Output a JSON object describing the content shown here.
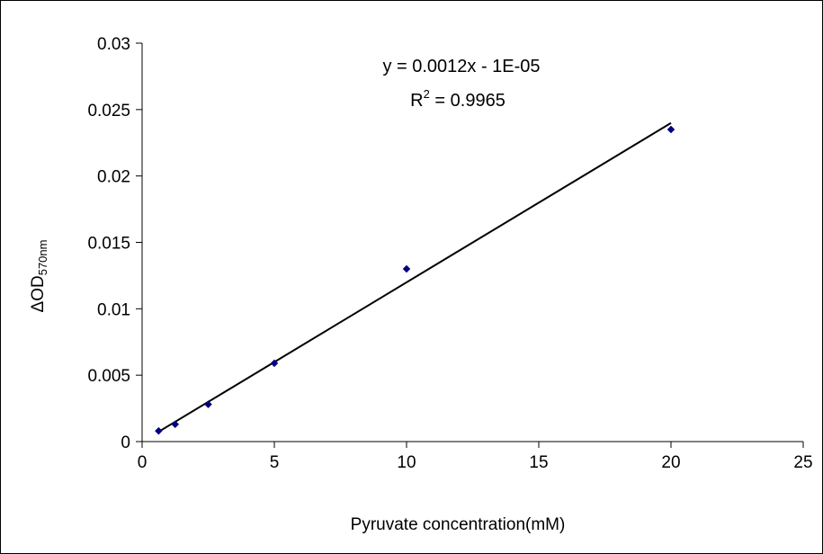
{
  "chart_data": {
    "type": "scatter",
    "xlabel": "Pyruvate concentration(mM)",
    "ylabel": {
      "main": "ΔOD",
      "sub": "570nm"
    },
    "xlim": [
      0,
      25
    ],
    "ylim": [
      0,
      0.03
    ],
    "xticks": [
      0,
      5,
      10,
      15,
      20,
      25
    ],
    "yticks": [
      0,
      0.005,
      0.01,
      0.015,
      0.02,
      0.025,
      0.03
    ],
    "xtick_labels": [
      "0",
      "5",
      "10",
      "15",
      "20",
      "25"
    ],
    "ytick_labels": [
      "0",
      "0.005",
      "0.01",
      "0.015",
      "0.02",
      "0.025",
      "0.03"
    ],
    "grid": false,
    "series": [
      {
        "x": [
          0.625,
          1.25,
          2.5,
          5,
          10,
          20
        ],
        "y": [
          0.0008,
          0.0013,
          0.0028,
          0.0059,
          0.013,
          0.0235
        ],
        "color": "#000080"
      }
    ],
    "trendline": {
      "slope": 0.0012,
      "intercept": -1e-05,
      "x_range": [
        0.625,
        20
      ],
      "color": "#000000",
      "equation": "y = 0.0012x - 1E-05",
      "r2_prefix": "R",
      "r2_sup": "2",
      "r2_value": " = 0.9965"
    }
  }
}
